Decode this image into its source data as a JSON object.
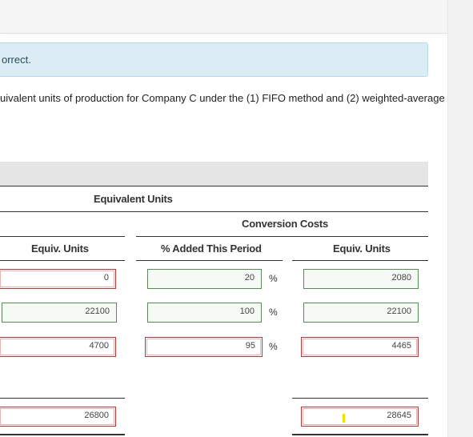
{
  "alert": {
    "text": "orrect."
  },
  "instructions": {
    "text": "uivalent units of production for Company C under the (1) FIFO method and (2) weighted-average"
  },
  "table": {
    "group_header": "Equivalent Units",
    "subgroup_header": "Conversion Costs",
    "columns": {
      "equiv_units_left": "Equiv. Units",
      "pct_added": "% Added This Period",
      "equiv_units_right": "Equiv. Units"
    },
    "pct_symbol": "%",
    "rows": [
      {
        "materials_equiv": "0",
        "materials_status": "red",
        "pct": "20",
        "pct_status": "green",
        "conv_equiv": "2080",
        "conv_status": "green"
      },
      {
        "materials_equiv": "22100",
        "materials_status": "green",
        "pct": "100",
        "pct_status": "green",
        "conv_equiv": "22100",
        "conv_status": "green"
      },
      {
        "materials_equiv": "4700",
        "materials_status": "red",
        "pct": "95",
        "pct_status": "red",
        "conv_equiv": "4465",
        "conv_status": "red"
      }
    ],
    "totals": {
      "materials_equiv": "26800",
      "materials_status": "red",
      "conv_equiv": "28645",
      "conv_status": "red"
    }
  },
  "colors": {
    "incorrect_border": "#b03a3a",
    "correct_border": "#5a8a5a",
    "alert_bg": "#dcecf5"
  }
}
